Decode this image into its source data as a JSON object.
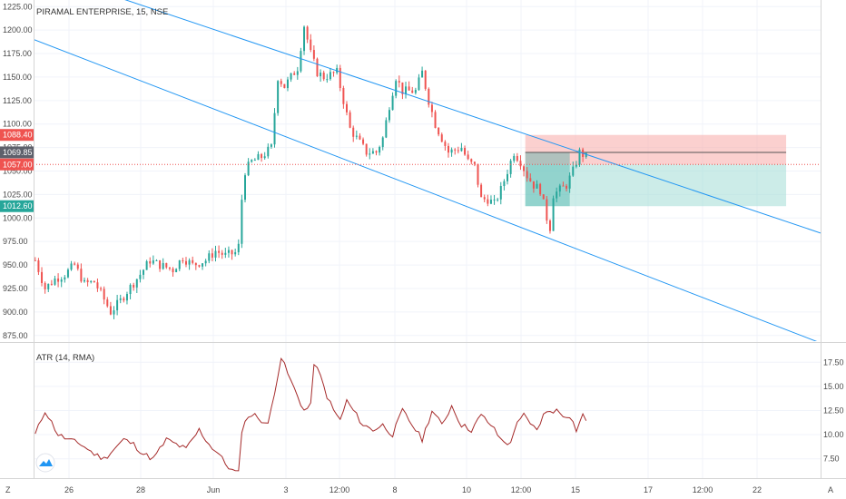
{
  "chart_data": [
    {
      "type": "candlestick",
      "title": "PIRAMAL ENTERPRISE, 15, NSE",
      "y_ticks": [
        "875.00",
        "900.00",
        "925.00",
        "950.00",
        "975.00",
        "1000.00",
        "1025.00",
        "1050.00",
        "1075.00",
        "1100.00",
        "1125.00",
        "1150.00",
        "1175.00",
        "1200.00",
        "1225.00"
      ],
      "ylim": [
        868,
        1232
      ],
      "x_ticks": [
        "26",
        "28",
        "Jun",
        "3",
        "12:00",
        "8",
        "10",
        "12:00",
        "15",
        "17",
        "12:00",
        "22"
      ],
      "grid": true,
      "ohlc_path": [
        [
          0,
          955
        ],
        [
          3,
          925
        ],
        [
          6,
          935
        ],
        [
          9,
          940
        ],
        [
          12,
          950
        ],
        [
          15,
          930
        ],
        [
          18,
          932
        ],
        [
          20,
          920
        ],
        [
          23,
          900
        ],
        [
          26,
          912
        ],
        [
          28,
          922
        ],
        [
          32,
          940
        ],
        [
          35,
          955
        ],
        [
          38,
          950
        ],
        [
          42,
          945
        ],
        [
          45,
          958
        ],
        [
          48,
          950
        ],
        [
          52,
          955
        ],
        [
          55,
          965
        ],
        [
          58,
          960
        ],
        [
          61,
          963
        ],
        [
          62,
          970
        ],
        [
          63,
          1020
        ],
        [
          64,
          1050
        ],
        [
          66,
          1060
        ],
        [
          69,
          1065
        ],
        [
          72,
          1075
        ],
        [
          74,
          1150
        ],
        [
          76,
          1140
        ],
        [
          78,
          1150
        ],
        [
          80,
          1160
        ],
        [
          82,
          1205
        ],
        [
          84,
          1175
        ],
        [
          86,
          1155
        ],
        [
          88,
          1150
        ],
        [
          92,
          1155
        ],
        [
          94,
          1125
        ],
        [
          96,
          1095
        ],
        [
          98,
          1085
        ],
        [
          101,
          1070
        ],
        [
          104,
          1070
        ],
        [
          106,
          1085
        ],
        [
          108,
          1120
        ],
        [
          110,
          1150
        ],
        [
          112,
          1135
        ],
        [
          116,
          1135
        ],
        [
          118,
          1155
        ],
        [
          120,
          1125
        ],
        [
          122,
          1100
        ],
        [
          124,
          1085
        ],
        [
          126,
          1070
        ],
        [
          130,
          1075
        ],
        [
          132,
          1060
        ],
        [
          134,
          1055
        ],
        [
          136,
          1020
        ],
        [
          138,
          1020
        ],
        [
          140,
          1015
        ],
        [
          142,
          1030
        ],
        [
          144,
          1050
        ],
        [
          146,
          1070
        ],
        [
          148,
          1060
        ],
        [
          150,
          1045
        ],
        [
          152,
          1035
        ],
        [
          154,
          1030
        ],
        [
          156,
          1000
        ],
        [
          157,
          990
        ],
        [
          158,
          1025
        ],
        [
          160,
          1030
        ],
        [
          162,
          1035
        ],
        [
          164,
          1050
        ],
        [
          166,
          1070
        ],
        [
          168,
          1065
        ]
      ],
      "total_bars": 240,
      "last_bar": 168,
      "position": {
        "entry": 1057.0,
        "target": 1012.6,
        "stop": 1088.4,
        "entry_label": "1057.00",
        "target_label": "1012.60",
        "stop_label": "1088.40"
      },
      "last_price": 1069.85,
      "last_price_label": "1069.85",
      "channel": {
        "upper": [
          [
            0,
            1265
          ],
          [
            240,
            984
          ]
        ],
        "lower": [
          [
            0,
            1190
          ],
          [
            240,
            867
          ]
        ]
      },
      "colors": {
        "up": "#26a69a",
        "down": "#ef5350",
        "channel": "#2196f3",
        "position_loss": "#f7a9a7",
        "position_gain": "#a3dcd6"
      }
    },
    {
      "type": "line",
      "title": "ATR (14, RMA)",
      "y_ticks": [
        "7.50",
        "10.00",
        "12.50",
        "15.00",
        "17.50"
      ],
      "ylim": [
        5.5,
        19.5
      ],
      "atr_path": [
        [
          0,
          10.0
        ],
        [
          3,
          12.5
        ],
        [
          7,
          10.0
        ],
        [
          10,
          9.5
        ],
        [
          14,
          9.0
        ],
        [
          18,
          8.0
        ],
        [
          21,
          7.5
        ],
        [
          24,
          8.5
        ],
        [
          27,
          9.5
        ],
        [
          30,
          9.0
        ],
        [
          33,
          8.0
        ],
        [
          36,
          7.5
        ],
        [
          40,
          9.5
        ],
        [
          43,
          9.0
        ],
        [
          46,
          8.5
        ],
        [
          50,
          10.5
        ],
        [
          53,
          9.0
        ],
        [
          56,
          8.0
        ],
        [
          58,
          7.0
        ],
        [
          60,
          6.3
        ],
        [
          62,
          6.0
        ],
        [
          63,
          10.5
        ],
        [
          65,
          12.0
        ],
        [
          67,
          12.0
        ],
        [
          69,
          11.5
        ],
        [
          71,
          11.0
        ],
        [
          73,
          14.5
        ],
        [
          75,
          18.0
        ],
        [
          78,
          15.5
        ],
        [
          80,
          14.0
        ],
        [
          82,
          12.5
        ],
        [
          84,
          13.0
        ],
        [
          85,
          17.5
        ],
        [
          87,
          16.0
        ],
        [
          89,
          14.0
        ],
        [
          91,
          12.5
        ],
        [
          93,
          11.5
        ],
        [
          95,
          13.5
        ],
        [
          97,
          12.5
        ],
        [
          100,
          11.0
        ],
        [
          103,
          10.5
        ],
        [
          106,
          11.0
        ],
        [
          109,
          10.0
        ],
        [
          112,
          12.5
        ],
        [
          115,
          11.0
        ],
        [
          118,
          9.5
        ],
        [
          121,
          12.5
        ],
        [
          124,
          11.0
        ],
        [
          127,
          13.0
        ],
        [
          130,
          11.0
        ],
        [
          133,
          10.5
        ],
        [
          136,
          12.0
        ],
        [
          139,
          11.0
        ],
        [
          142,
          9.5
        ],
        [
          145,
          9.0
        ],
        [
          147,
          11.5
        ],
        [
          149,
          12.0
        ],
        [
          151,
          11.0
        ],
        [
          153,
          10.5
        ],
        [
          155,
          12.0
        ],
        [
          157,
          12.5
        ],
        [
          159,
          12.5
        ],
        [
          161,
          12.0
        ],
        [
          163,
          12.0
        ],
        [
          165,
          10.5
        ],
        [
          167,
          12.0
        ],
        [
          168,
          11.5
        ]
      ]
    }
  ],
  "icons": {
    "logo": "tradingview-logo-icon",
    "z_label": "Z",
    "a_label": "A"
  }
}
